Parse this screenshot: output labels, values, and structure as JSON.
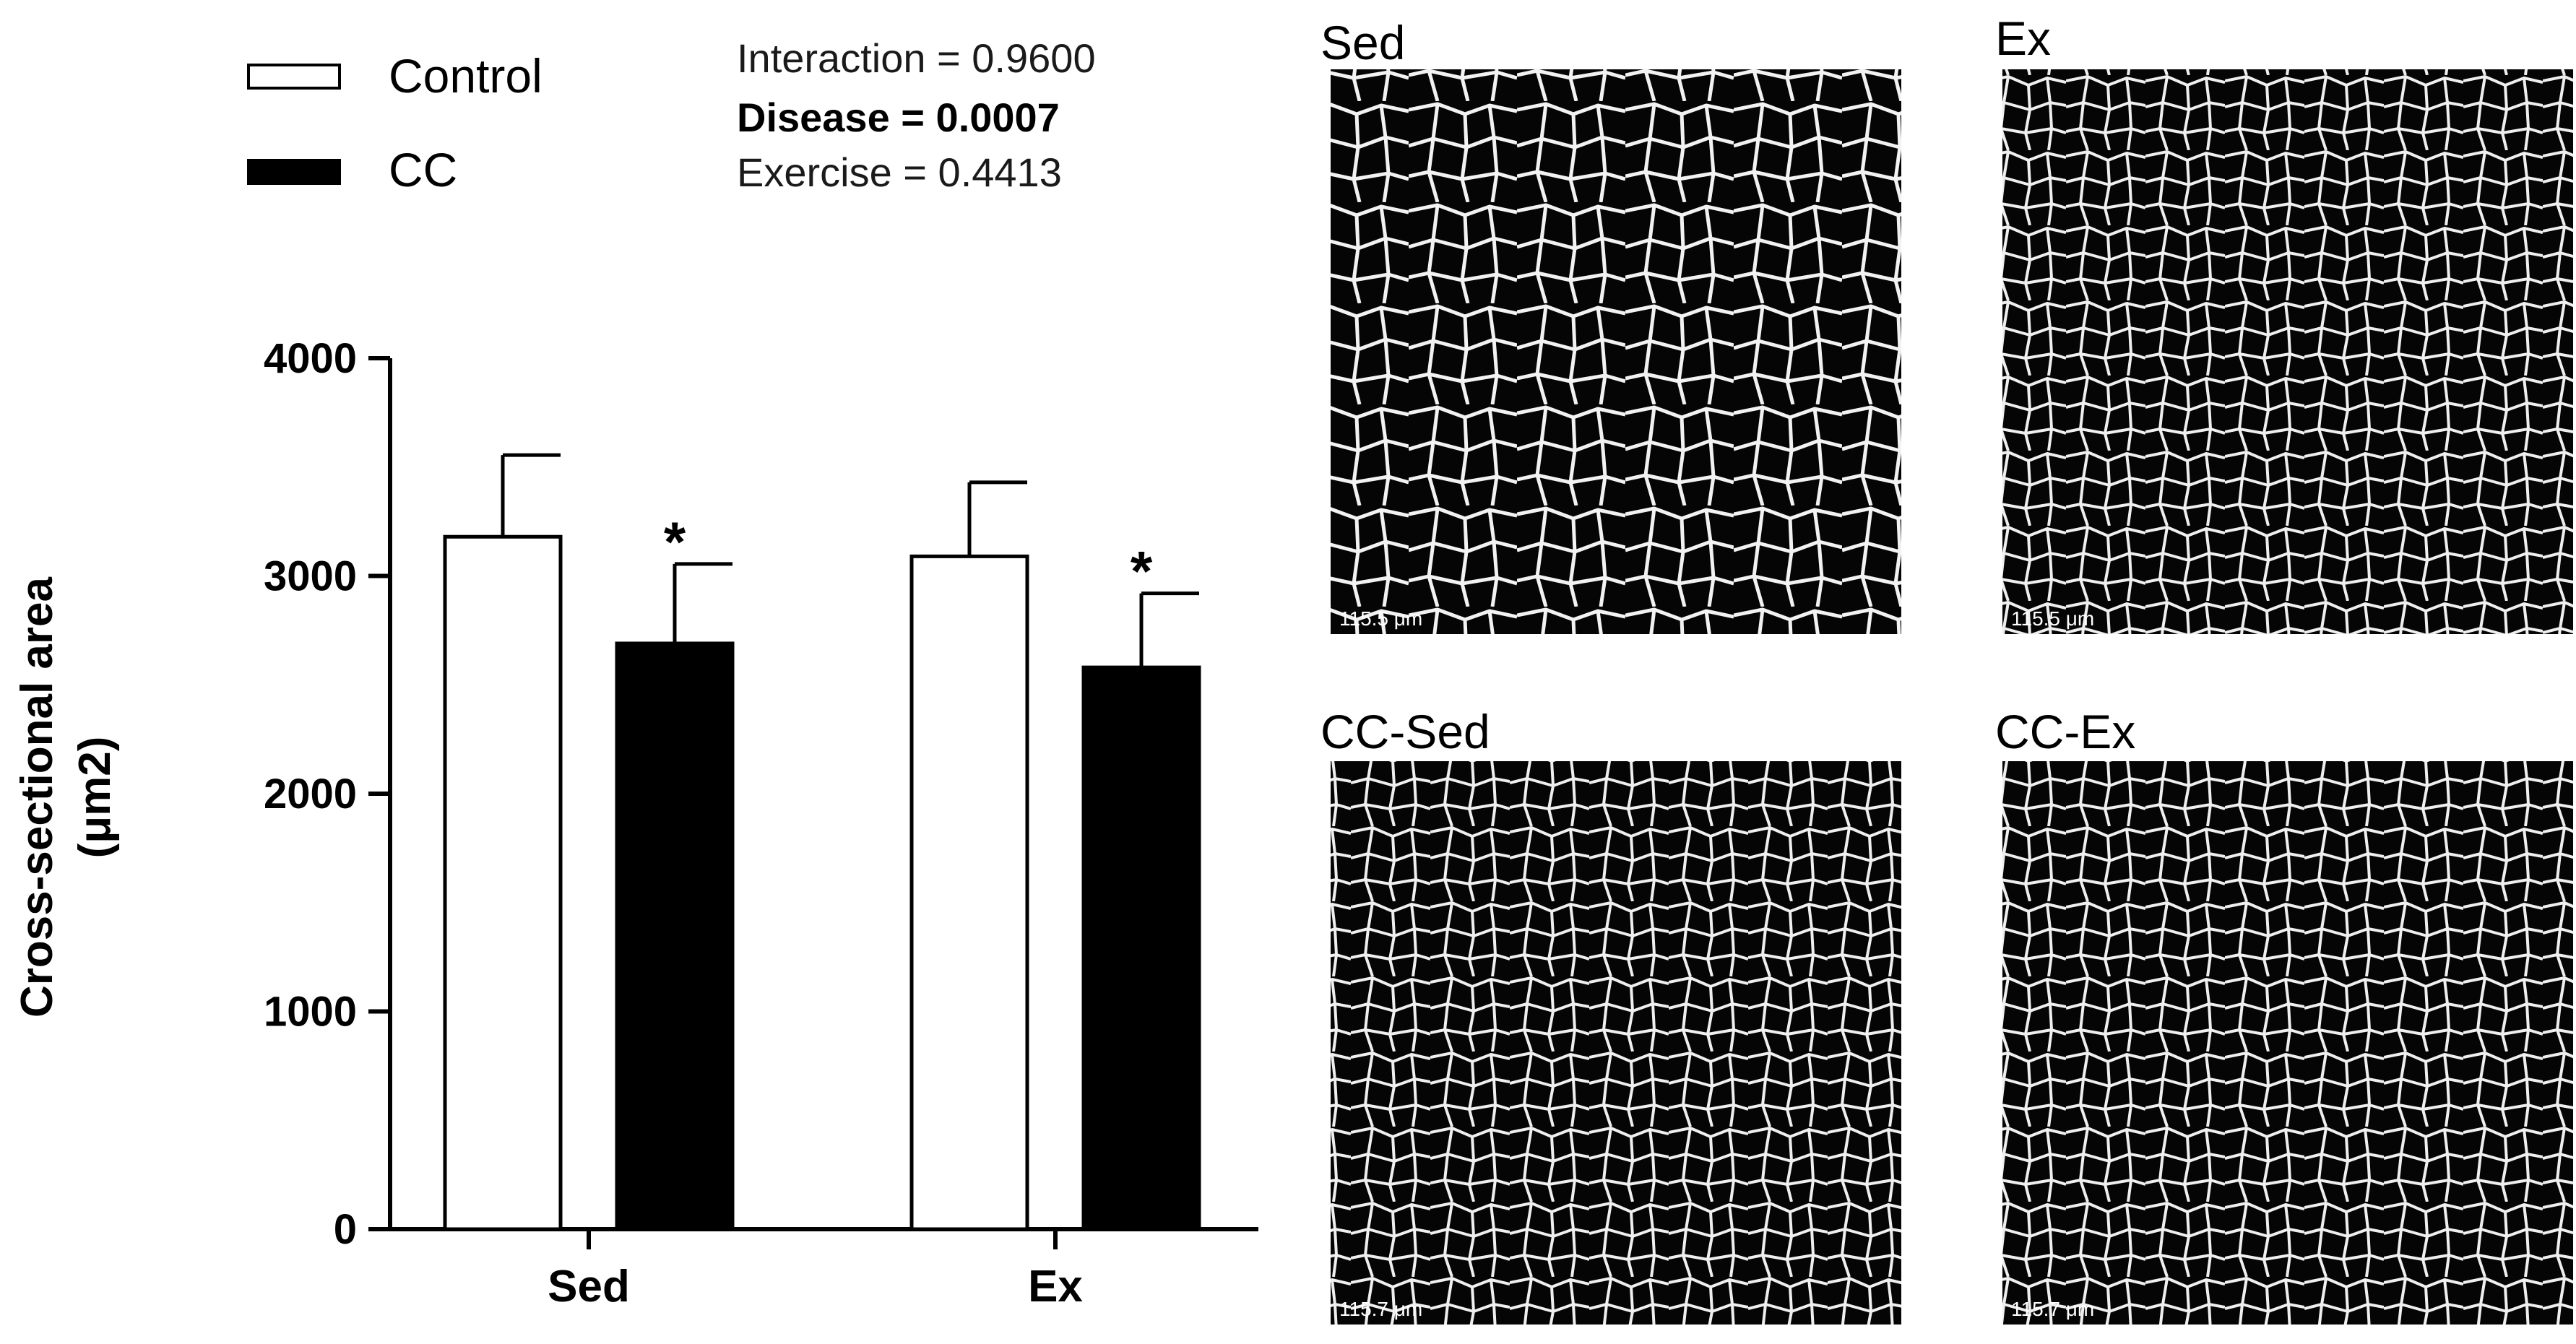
{
  "chart_data": {
    "type": "bar",
    "categories": [
      "Sed",
      "Ex"
    ],
    "ylabel_line1": "Cross-sectional area",
    "ylabel_line2": "(μm2)",
    "ylim": [
      0,
      4000
    ],
    "yticks": [
      0,
      1000,
      2000,
      3000,
      4000
    ],
    "series": [
      {
        "name": "Control",
        "fill": "#ffffff",
        "values": [
          3180,
          3090
        ],
        "error": [
          375,
          340
        ]
      },
      {
        "name": "CC",
        "fill": "#000000",
        "values": [
          2690,
          2580
        ],
        "error": [
          365,
          340
        ]
      }
    ],
    "significance": [
      "*",
      "*"
    ],
    "stats": {
      "interaction": "Interaction = 0.9600",
      "disease": "Disease = 0.0007",
      "exercise": "Exercise = 0.4413"
    }
  },
  "micrographs": [
    {
      "title": "Sed",
      "scale_bar": "115.5 μm"
    },
    {
      "title": "Ex",
      "scale_bar": "115.5 μm"
    },
    {
      "title": "CC-Sed",
      "scale_bar": "115.7 μm"
    },
    {
      "title": "CC-Ex",
      "scale_bar": "115.7 μm"
    }
  ]
}
